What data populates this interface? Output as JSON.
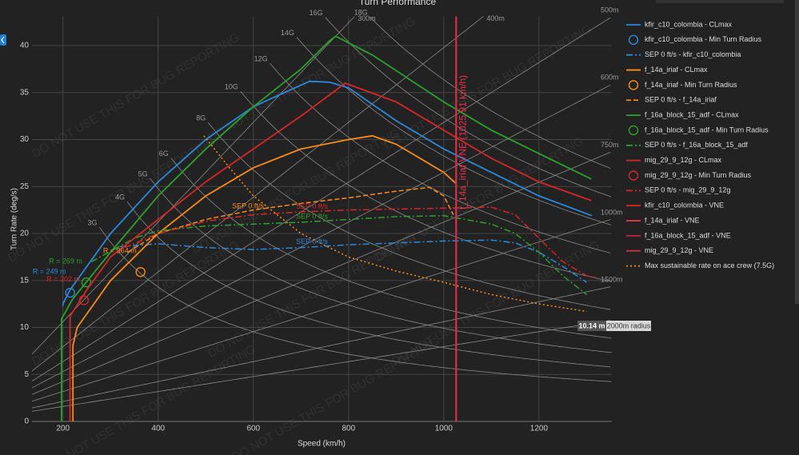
{
  "chart_data": {
    "type": "line",
    "title": "Turn Performance",
    "x_label": "Speed (km/h)",
    "y_label": "Turn Rate (deg/s)",
    "xlim": [
      135,
      1353
    ],
    "ylim": [
      0,
      43.1
    ],
    "xticks": [
      200,
      400,
      600,
      800,
      1000,
      1200
    ],
    "yticks": [
      0,
      5,
      10,
      15,
      20,
      25,
      30,
      35,
      40
    ],
    "grid": true,
    "legend": "right",
    "watermark": "DO NOT USE THIS FOR BUG REPORTING",
    "g_lines": [
      {
        "value": 3,
        "label": "3G"
      },
      {
        "value": 4,
        "label": "4G"
      },
      {
        "value": 5,
        "label": "5G"
      },
      {
        "value": 6,
        "label": "6G"
      },
      {
        "value": 8,
        "label": "8G"
      },
      {
        "value": 10,
        "label": "10G"
      },
      {
        "value": 12,
        "label": "12G"
      },
      {
        "value": 14,
        "label": "14G"
      },
      {
        "value": 16,
        "label": "16G"
      },
      {
        "value": 18,
        "label": "18G"
      }
    ],
    "radius_lines": [
      {
        "value": 300,
        "label": "300m"
      },
      {
        "value": 400,
        "label": "400m"
      },
      {
        "value": 500,
        "label": "500m"
      },
      {
        "value": 600,
        "label": "600m"
      },
      {
        "value": 750,
        "label": "750m"
      },
      {
        "value": 1000,
        "label": "1000m"
      },
      {
        "value": 1500,
        "label": "1500m"
      },
      {
        "value": 2000
      }
    ],
    "tooltip": {
      "value": "10.14 m",
      "name": "2000m radius"
    },
    "series": [
      {
        "name": "kfir_c10_colombia - CLmax",
        "color": "#2b88d8",
        "mode": "lines",
        "dash": "solid",
        "x": [
          200,
          200,
          215,
          300,
          400,
          500,
          600,
          700,
          718,
          760,
          800,
          900,
          1000,
          1100,
          1200,
          1311
        ],
        "values": [
          12.3,
          12.5,
          14,
          20,
          25.5,
          30,
          33.5,
          35.8,
          36.2,
          36.1,
          35.5,
          32,
          29,
          26.5,
          24,
          21.9
        ]
      },
      {
        "name": "kfir_c10_colombia - Min Turn Radius",
        "color": "#2b88d8",
        "mode": "markers",
        "x": [
          215
        ],
        "values": [
          13.7
        ],
        "annotation": "R = 249 m"
      },
      {
        "name": "SEP 0 ft/s - kfir_c10_colombia",
        "color": "#2b88d8",
        "mode": "lines",
        "dash": "dashdot",
        "x": [
          320,
          400,
          500,
          600,
          700,
          800,
          900,
          1000,
          1100,
          1150,
          1200,
          1250,
          1300
        ],
        "values": [
          18.6,
          18.9,
          18.5,
          18.3,
          18.5,
          18.8,
          19,
          19.2,
          19.3,
          19,
          18,
          16.5,
          14.8
        ],
        "annotation": "SEP 0 ft/s"
      },
      {
        "name": "f_14a_iriaf - CLmax",
        "color": "#ff8c1a",
        "mode": "lines",
        "dash": "solid",
        "x": [
          221,
          221,
          230,
          300,
          400,
          500,
          600,
          700,
          800,
          850,
          900,
          1000,
          1026
        ],
        "values": [
          0,
          8.1,
          10,
          15,
          20,
          24,
          27,
          29,
          30,
          30.4,
          29.5,
          26.5,
          25.3
        ]
      },
      {
        "name": "f_14a_iriaf - Min Turn Radius",
        "color": "#ff8c1a",
        "mode": "markers",
        "x": [
          363
        ],
        "values": [
          15.9
        ],
        "annotation": "R = 364 m"
      },
      {
        "name": "SEP 0 ft/s - f_14a_iriaf",
        "color": "#ff8c1a",
        "mode": "lines",
        "dash": "dash",
        "x": [
          336,
          400,
          500,
          600,
          700,
          800,
          900,
          970,
          1000,
          1020
        ],
        "values": [
          18,
          20,
          21.5,
          22.5,
          23.2,
          23.8,
          24.5,
          24.9,
          24,
          22
        ],
        "annotation": "SEP 0 ft/s"
      },
      {
        "name": "f_16a_block_15_adf - CLmax",
        "color": "#2ca02c",
        "mode": "lines",
        "dash": "solid",
        "x": [
          197,
          197,
          220,
          300,
          400,
          500,
          600,
          700,
          760,
          773,
          850,
          1000,
          1100,
          1200,
          1310
        ],
        "values": [
          0,
          10.9,
          13,
          18,
          24,
          29,
          33.5,
          37.5,
          40.5,
          41,
          39,
          34,
          31,
          28.5,
          25.8
        ]
      },
      {
        "name": "f_16a_block_15_adf - Min Turn Radius",
        "color": "#2ca02c",
        "mode": "markers",
        "x": [
          249
        ],
        "values": [
          14.8
        ],
        "annotation": "R = 269 m"
      },
      {
        "name": "SEP 0 ft/s - f_16a_block_15_adf",
        "color": "#2ca02c",
        "mode": "lines",
        "dash": "dashdot",
        "x": [
          260,
          350,
          400,
          500,
          600,
          700,
          800,
          900,
          1000,
          1100,
          1150,
          1200,
          1250,
          1300
        ],
        "values": [
          17,
          19.5,
          20.3,
          20.8,
          21,
          21.2,
          21.5,
          21.8,
          21.9,
          21,
          20,
          18,
          15.5,
          13.5
        ],
        "annotation": "SEP 0 ft/s"
      },
      {
        "name": "mig_29_9_12g - CLmax",
        "color": "#d62728",
        "mode": "lines",
        "dash": "solid",
        "x": [
          215,
          215,
          250,
          300,
          400,
          500,
          600,
          700,
          780,
          793,
          900,
          1000,
          1100,
          1200,
          1310
        ],
        "values": [
          0,
          11.2,
          14,
          17.5,
          21.5,
          25.5,
          29,
          32.5,
          35.5,
          36,
          34,
          31,
          28,
          25.5,
          23.5
        ]
      },
      {
        "name": "mig_29_9_12g - Min Turn Radius",
        "color": "#d62728",
        "mode": "markers",
        "x": [
          244
        ],
        "values": [
          12.9
        ],
        "annotation": "R = 302 m"
      },
      {
        "name": "SEP 0 ft/s - mig_29_9_12g",
        "color": "#d62728",
        "mode": "lines",
        "dash": "dashdot",
        "x": [
          330,
          400,
          500,
          600,
          700,
          800,
          900,
          1000,
          1100,
          1150,
          1200,
          1250,
          1300,
          1320
        ],
        "values": [
          18.5,
          20,
          21.3,
          22,
          22.3,
          22.5,
          22.6,
          22.7,
          22.8,
          22,
          19.5,
          17,
          15.5,
          15.3
        ],
        "annotation": "SEP 0 ft/s"
      },
      {
        "name": "kfir_c10_colombia - VNE",
        "color": "#d62728",
        "mode": "lines",
        "dash": "solid",
        "x": [
          1025.91,
          1025.91
        ],
        "values": [
          0,
          43.1
        ]
      },
      {
        "name": "f_14a_iriaf - VNE",
        "color": "#e8334a",
        "mode": "lines",
        "dash": "solid",
        "x": [
          1025.91,
          1025.91
        ],
        "values": [
          0,
          43.1
        ],
        "annotation": "f_14a_iriaf VNE (1025.91 km/h)"
      },
      {
        "name": "f_16a_block_15_adf - VNE",
        "color": "#c81e3c",
        "mode": "lines",
        "dash": "solid",
        "x": [
          1025.91,
          1025.91
        ],
        "values": [
          0,
          43.1
        ]
      },
      {
        "name": "mig_29_9_12g - VNE",
        "color": "#d9304a",
        "mode": "lines",
        "dash": "solid",
        "x": [
          1025.91,
          1025.91
        ],
        "values": [
          0,
          43.1
        ]
      },
      {
        "name": "Max sustainable rate on ace crew (7.5G)",
        "color": "#ff8c1a",
        "mode": "lines",
        "dash": "dot",
        "x": [
          496,
          550,
          600,
          700,
          800,
          900,
          1000,
          1100,
          1200,
          1300
        ],
        "values": [
          30.4,
          27,
          24,
          20,
          17.5,
          16,
          14.8,
          13.5,
          12.5,
          11.7
        ]
      }
    ]
  }
}
